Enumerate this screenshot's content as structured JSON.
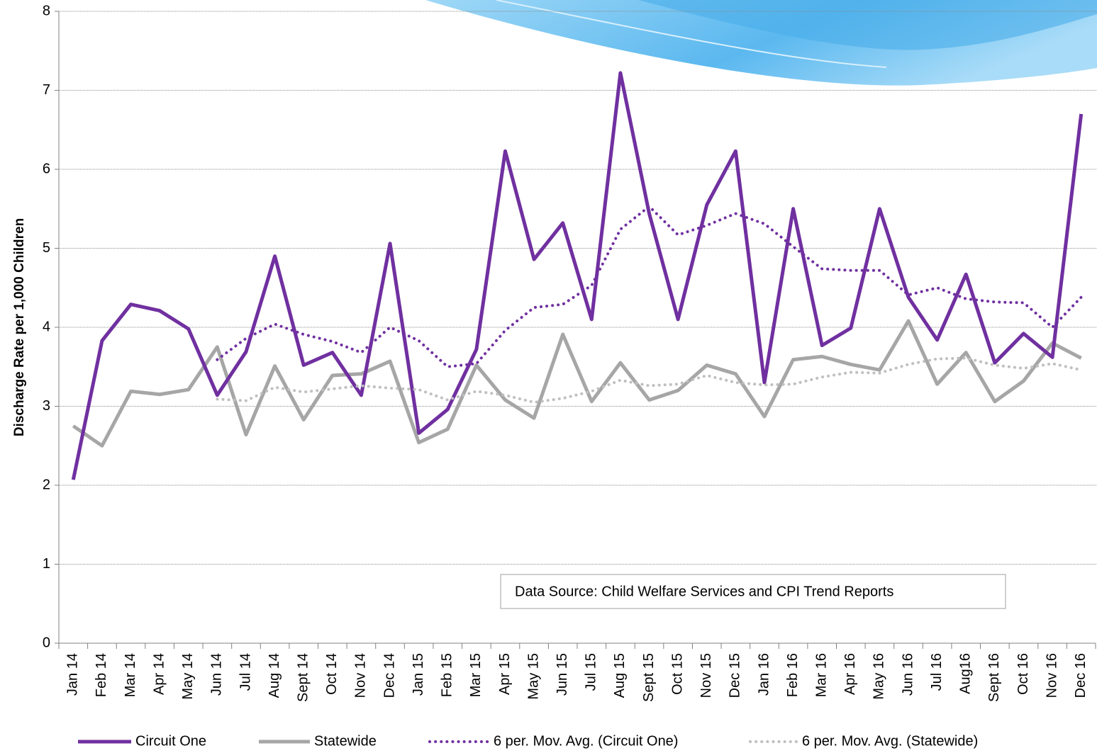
{
  "chart_data": {
    "type": "line",
    "y_label": "Discharge Rate per 1,000 Children",
    "annotation": "Data Source: Child Welfare Services and CPI Trend Reports",
    "categories": [
      "Jan 14",
      "Feb 14",
      "Mar 14",
      "Apr 14",
      "May 14",
      "Jun 14",
      "Jul 14",
      "Aug 14",
      "Sept 14",
      "Oct 14",
      "Nov 14",
      "Dec 14",
      "Jan 15",
      "Feb 15",
      "Mar 15",
      "Apr 15",
      "May 15",
      "Jun 15",
      "Jul 15",
      "Aug 15",
      "Sept 15",
      "Oct 15",
      "Nov 15",
      "Dec 15",
      "Jan 16",
      "Feb 16",
      "Mar 16",
      "Apr 16",
      "May 16",
      "Jun 16",
      "Jul 16",
      "Aug16",
      "Sept 16",
      "Oct 16",
      "Nov 16",
      "Dec 16"
    ],
    "series": [
      {
        "name": "Circuit One",
        "color": "#7030a0",
        "style": "solid",
        "values": [
          2.07,
          3.83,
          4.29,
          4.21,
          3.98,
          3.14,
          3.69,
          4.9,
          3.52,
          3.68,
          3.14,
          5.06,
          2.66,
          2.96,
          3.72,
          6.23,
          4.86,
          5.32,
          4.1,
          7.22,
          5.44,
          4.1,
          5.55,
          6.23,
          3.3,
          5.5,
          3.77,
          3.99,
          5.5,
          4.38,
          3.84,
          4.67,
          3.55,
          3.92,
          3.62,
          6.7
        ]
      },
      {
        "name": "Statewide",
        "color": "#a6a6a6",
        "style": "solid",
        "values": [
          2.75,
          2.5,
          3.19,
          3.15,
          3.21,
          3.75,
          2.64,
          3.51,
          2.83,
          3.39,
          3.41,
          3.57,
          2.54,
          2.71,
          3.52,
          3.08,
          2.85,
          3.91,
          3.06,
          3.55,
          3.08,
          3.2,
          3.52,
          3.41,
          2.87,
          3.59,
          3.63,
          3.53,
          3.46,
          4.08,
          3.28,
          3.68,
          3.06,
          3.32,
          3.8,
          3.61
        ]
      },
      {
        "name": "6 per. Mov. Avg. (Circuit One)",
        "color": "#7030a0",
        "style": "dotted",
        "values": [
          null,
          null,
          null,
          null,
          null,
          3.59,
          3.86,
          4.04,
          3.91,
          3.82,
          3.68,
          4.0,
          3.83,
          3.5,
          3.54,
          3.96,
          4.25,
          4.29,
          4.53,
          5.24,
          5.53,
          5.17,
          5.29,
          5.44,
          5.31,
          5.02,
          4.74,
          4.72,
          4.72,
          4.41,
          4.5,
          4.36,
          4.32,
          4.31,
          4.0,
          4.38
        ]
      },
      {
        "name": "6 per. Mov. Avg. (Statewide)",
        "color": "#bfbfbf",
        "style": "dotted",
        "values": [
          null,
          null,
          null,
          null,
          null,
          3.09,
          3.07,
          3.24,
          3.18,
          3.22,
          3.26,
          3.23,
          3.21,
          3.08,
          3.19,
          3.14,
          3.05,
          3.1,
          3.19,
          3.33,
          3.26,
          3.28,
          3.39,
          3.3,
          3.27,
          3.28,
          3.37,
          3.43,
          3.42,
          3.53,
          3.6,
          3.61,
          3.52,
          3.48,
          3.54,
          3.46
        ]
      }
    ],
    "ylim": [
      0,
      8
    ],
    "yticks": [
      0,
      1,
      2,
      3,
      4,
      5,
      6,
      7,
      8
    ],
    "grid": true,
    "legend": "bottom"
  }
}
